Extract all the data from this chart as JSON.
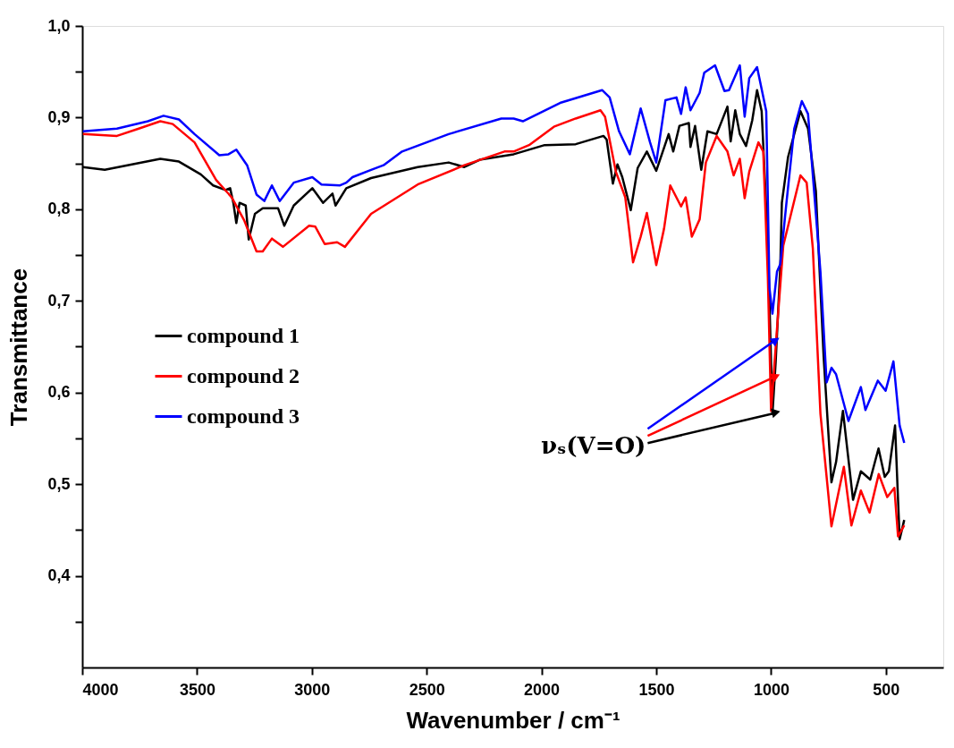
{
  "chart_data": {
    "type": "line",
    "xlabel": "Wavenumber / cm⁻¹",
    "ylabel": "Transmittance",
    "xlim": [
      4000,
      250
    ],
    "xticks": [
      4000,
      3500,
      3000,
      2500,
      2000,
      1500,
      1000,
      500
    ],
    "ylim": [
      0.3,
      1.0
    ],
    "yticks": [
      {
        "value": 0.35,
        "label": null
      },
      {
        "value": 0.4,
        "label": "0,4"
      },
      {
        "value": 0.45,
        "label": null
      },
      {
        "value": 0.5,
        "label": "0,5"
      },
      {
        "value": 0.55,
        "label": null
      },
      {
        "value": 0.6,
        "label": "0,6"
      },
      {
        "value": 0.65,
        "label": null
      },
      {
        "value": 0.7,
        "label": "0,7"
      },
      {
        "value": 0.75,
        "label": null
      },
      {
        "value": 0.8,
        "label": "0,8"
      },
      {
        "value": 0.85,
        "label": null
      },
      {
        "value": 0.9,
        "label": "0,9"
      },
      {
        "value": 0.95,
        "label": null
      },
      {
        "value": 1.0,
        "label": "1,0"
      }
    ],
    "grid": false,
    "legend": "left",
    "marker": "none",
    "line_style": "solid",
    "annotations": [
      {
        "text": "νₛ(V=O)",
        "x": 1000,
        "y": 0.58
      }
    ],
    "series": [
      {
        "name": "compound 1",
        "color": "#000000",
        "x": [
          3997,
          3902,
          3660,
          3579,
          3484,
          3430,
          3376,
          3356,
          3342,
          3329,
          3315,
          3288,
          3275,
          3248,
          3214,
          3147,
          3120,
          3079,
          2998,
          2951,
          2910,
          2897,
          2850,
          2742,
          2539,
          2404,
          2336,
          2269,
          2121,
          1986,
          1851,
          1730,
          1716,
          1689,
          1669,
          1648,
          1611,
          1581,
          1541,
          1500,
          1446,
          1426,
          1399,
          1358,
          1351,
          1331,
          1304,
          1277,
          1237,
          1190,
          1176,
          1156,
          1136,
          1109,
          1082,
          1061,
          1041,
          1014,
          994,
          980,
          960,
          953,
          926,
          872,
          839,
          805,
          771,
          737,
          717,
          687,
          643,
          609,
          568,
          532,
          505,
          487,
          460,
          440,
          420
        ],
        "values": [
          0.846,
          0.843,
          0.855,
          0.852,
          0.838,
          0.826,
          0.821,
          0.823,
          0.807,
          0.785,
          0.807,
          0.804,
          0.767,
          0.795,
          0.801,
          0.801,
          0.782,
          0.804,
          0.823,
          0.807,
          0.817,
          0.804,
          0.823,
          0.834,
          0.846,
          0.851,
          0.846,
          0.854,
          0.86,
          0.87,
          0.871,
          0.88,
          0.876,
          0.828,
          0.849,
          0.835,
          0.799,
          0.845,
          0.863,
          0.842,
          0.882,
          0.863,
          0.891,
          0.894,
          0.868,
          0.891,
          0.843,
          0.885,
          0.882,
          0.912,
          0.874,
          0.908,
          0.882,
          0.869,
          0.897,
          0.93,
          0.907,
          0.764,
          0.577,
          0.633,
          0.736,
          0.807,
          0.857,
          0.907,
          0.888,
          0.82,
          0.639,
          0.502,
          0.524,
          0.58,
          0.483,
          0.514,
          0.505,
          0.539,
          0.508,
          0.514,
          0.564,
          0.44,
          0.461
        ]
      },
      {
        "name": "compound 2",
        "color": "#ff0000",
        "x": [
          3997,
          3849,
          3754,
          3660,
          3606,
          3511,
          3417,
          3349,
          3295,
          3241,
          3214,
          3174,
          3126,
          3012,
          2985,
          2944,
          2890,
          2856,
          2742,
          2539,
          2336,
          2161,
          2121,
          2054,
          1946,
          1851,
          1743,
          1723,
          1676,
          1635,
          1601,
          1568,
          1541,
          1500,
          1466,
          1439,
          1392,
          1372,
          1345,
          1311,
          1284,
          1237,
          1190,
          1163,
          1136,
          1115,
          1095,
          1055,
          1034,
          1014,
          1000,
          974,
          947,
          913,
          872,
          845,
          818,
          785,
          737,
          683,
          650,
          609,
          571,
          531,
          494,
          463,
          447,
          420
        ],
        "values": [
          0.882,
          0.88,
          0.888,
          0.896,
          0.893,
          0.873,
          0.832,
          0.813,
          0.788,
          0.754,
          0.754,
          0.768,
          0.759,
          0.782,
          0.781,
          0.762,
          0.764,
          0.759,
          0.795,
          0.827,
          0.848,
          0.863,
          0.863,
          0.87,
          0.89,
          0.899,
          0.908,
          0.901,
          0.841,
          0.813,
          0.742,
          0.77,
          0.796,
          0.739,
          0.779,
          0.826,
          0.803,
          0.813,
          0.77,
          0.789,
          0.851,
          0.88,
          0.863,
          0.837,
          0.855,
          0.812,
          0.841,
          0.873,
          0.863,
          0.726,
          0.58,
          0.67,
          0.76,
          0.795,
          0.837,
          0.829,
          0.757,
          0.577,
          0.454,
          0.519,
          0.455,
          0.493,
          0.469,
          0.511,
          0.486,
          0.496,
          0.443,
          0.455
        ]
      },
      {
        "name": "compound 3",
        "color": "#0000ff",
        "x": [
          3997,
          3849,
          3714,
          3646,
          3579,
          3511,
          3403,
          3363,
          3329,
          3282,
          3241,
          3207,
          3174,
          3140,
          3079,
          2998,
          2958,
          2877,
          2850,
          2823,
          2742,
          2688,
          2607,
          2404,
          2175,
          2121,
          2081,
          1919,
          1736,
          1703,
          1662,
          1615,
          1568,
          1527,
          1500,
          1460,
          1412,
          1392,
          1372,
          1351,
          1311,
          1291,
          1244,
          1203,
          1183,
          1136,
          1115,
          1095,
          1061,
          1021,
          1007,
          994,
          974,
          960,
          933,
          899,
          866,
          839,
          785,
          758,
          737,
          717,
          663,
          609,
          589,
          535,
          501,
          467,
          440,
          420
        ],
        "values": [
          0.885,
          0.888,
          0.896,
          0.902,
          0.898,
          0.882,
          0.859,
          0.86,
          0.865,
          0.848,
          0.816,
          0.809,
          0.826,
          0.809,
          0.829,
          0.835,
          0.827,
          0.826,
          0.829,
          0.835,
          0.843,
          0.848,
          0.863,
          0.882,
          0.899,
          0.899,
          0.896,
          0.916,
          0.93,
          0.922,
          0.885,
          0.86,
          0.91,
          0.873,
          0.851,
          0.919,
          0.922,
          0.904,
          0.933,
          0.908,
          0.927,
          0.949,
          0.957,
          0.929,
          0.93,
          0.957,
          0.901,
          0.943,
          0.955,
          0.907,
          0.714,
          0.686,
          0.732,
          0.74,
          0.807,
          0.888,
          0.918,
          0.904,
          0.732,
          0.611,
          0.627,
          0.62,
          0.569,
          0.606,
          0.581,
          0.613,
          0.602,
          0.634,
          0.564,
          0.545
        ]
      }
    ]
  }
}
